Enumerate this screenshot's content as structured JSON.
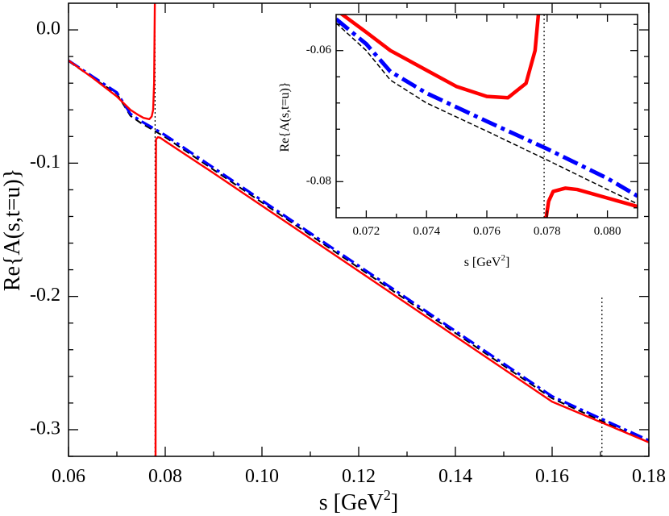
{
  "chart_data": [
    {
      "type": "line",
      "id": "main",
      "xlabel": "s [GeV",
      "xlabel_sup": "2",
      "xlabel_close": "]",
      "ylabel": "Re{A(s,t=u)}",
      "xlim": [
        0.06,
        0.18
      ],
      "ylim": [
        -0.32,
        0.02
      ],
      "x_ticks": [
        0.06,
        0.08,
        0.1,
        0.12,
        0.14,
        0.16,
        0.18
      ],
      "x_tick_labels": [
        "0.06",
        "0.08",
        "0.10",
        "0.12",
        "0.14",
        "0.16",
        "0.18"
      ],
      "y_ticks": [
        0.0,
        -0.1,
        -0.2,
        -0.3
      ],
      "y_tick_labels": [
        "0.0",
        "-0.1",
        "-0.2",
        "-0.3"
      ],
      "grid": false,
      "vertical_markers": [
        {
          "x": 0.0779,
          "y_from": -0.32,
          "y_to": 0.02,
          "style": "dotted"
        },
        {
          "x": 0.1703,
          "y_from": -0.32,
          "y_to": -0.2,
          "style": "dotted"
        }
      ],
      "series": [
        {
          "name": "dashed-black",
          "color": "#000000",
          "dash": "dashed",
          "x": [
            0.06,
            0.065,
            0.07,
            0.0728,
            0.075,
            0.0779,
            0.08,
            0.09,
            0.1,
            0.12,
            0.14,
            0.16,
            0.18
          ],
          "y": [
            -0.0235,
            -0.036,
            -0.048,
            -0.0645,
            -0.07,
            -0.076,
            -0.0805,
            -0.105,
            -0.1295,
            -0.1785,
            -0.2275,
            -0.2765,
            -0.3095
          ]
        },
        {
          "name": "dash-dot-blue",
          "color": "#0000ff",
          "dash": "dashdot",
          "x": [
            0.06,
            0.065,
            0.07,
            0.0728,
            0.075,
            0.0779,
            0.08,
            0.09,
            0.1,
            0.12,
            0.14,
            0.16,
            0.18
          ],
          "y": [
            -0.023,
            -0.035,
            -0.047,
            -0.063,
            -0.0685,
            -0.0745,
            -0.079,
            -0.1035,
            -0.128,
            -0.177,
            -0.226,
            -0.275,
            -0.308
          ]
        },
        {
          "name": "solid-red",
          "color": "#ff0000",
          "dash": "solid",
          "segments": [
            {
              "x": [
                0.06,
                0.065,
                0.07,
                0.0728,
                0.0745,
                0.0755,
                0.0767,
                0.0772,
                0.0775,
                0.0777,
                0.07785
              ],
              "y": [
                -0.023,
                -0.036,
                -0.05,
                -0.06,
                -0.064,
                -0.066,
                -0.067,
                -0.065,
                -0.06,
                -0.04,
                0.02
              ]
            },
            {
              "x": [
                0.078,
                0.07805,
                0.0781,
                0.0785,
                0.079,
                0.08,
                0.09,
                0.1,
                0.12,
                0.14,
                0.16,
                0.18
              ],
              "y": [
                -0.32,
                -0.15,
                -0.082,
                -0.0805,
                -0.081,
                -0.0835,
                -0.1075,
                -0.132,
                -0.181,
                -0.23,
                -0.279,
                -0.3095
              ]
            }
          ]
        }
      ]
    },
    {
      "type": "line",
      "id": "inset",
      "xlabel": "s [GeV",
      "xlabel_sup": "2",
      "xlabel_close": "]",
      "ylabel": "Re{A(s,t=u)}",
      "xlim": [
        0.071,
        0.081
      ],
      "ylim": [
        -0.0855,
        -0.0545
      ],
      "x_ticks": [
        0.072,
        0.074,
        0.076,
        0.078,
        0.08
      ],
      "x_tick_labels": [
        "0.072",
        "0.074",
        "0.076",
        "0.078",
        "0.080"
      ],
      "y_ticks": [
        -0.06,
        -0.08
      ],
      "y_tick_labels": [
        "-0.06",
        "-0.08"
      ],
      "grid": false,
      "vertical_markers": [
        {
          "x": 0.0779,
          "y_from": -0.0855,
          "y_to": -0.0545,
          "style": "dotted"
        }
      ],
      "series": [
        {
          "name": "dashed-black",
          "color": "#000000",
          "dash": "dashed",
          "x": [
            0.071,
            0.072,
            0.0728,
            0.074,
            0.076,
            0.078,
            0.08,
            0.081
          ],
          "y": [
            -0.0558,
            -0.06,
            -0.0645,
            -0.068,
            -0.0723,
            -0.0767,
            -0.0812,
            -0.0834
          ]
        },
        {
          "name": "dash-dot-blue",
          "color": "#0000ff",
          "dash": "dashdot",
          "x": [
            0.071,
            0.072,
            0.0728,
            0.074,
            0.076,
            0.078,
            0.08,
            0.081
          ],
          "y": [
            -0.0552,
            -0.059,
            -0.0632,
            -0.0665,
            -0.0708,
            -0.075,
            -0.0795,
            -0.0822
          ]
        },
        {
          "name": "solid-red",
          "color": "#ff0000",
          "dash": "solid",
          "segments": [
            {
              "x": [
                0.071,
                0.072,
                0.0728,
                0.074,
                0.075,
                0.076,
                0.0767,
                0.0773,
                0.0776,
                0.0778,
                0.07785
              ],
              "y": [
                -0.0538,
                -0.0572,
                -0.06,
                -0.063,
                -0.0655,
                -0.067,
                -0.0672,
                -0.065,
                -0.06,
                -0.05,
                -0.048
              ]
            },
            {
              "x": [
                0.07795,
                0.07805,
                0.0782,
                0.0786,
                0.079,
                0.08,
                0.081
              ],
              "y": [
                -0.086,
                -0.083,
                -0.0815,
                -0.081,
                -0.0812,
                -0.0825,
                -0.0838
              ]
            }
          ]
        }
      ]
    }
  ]
}
